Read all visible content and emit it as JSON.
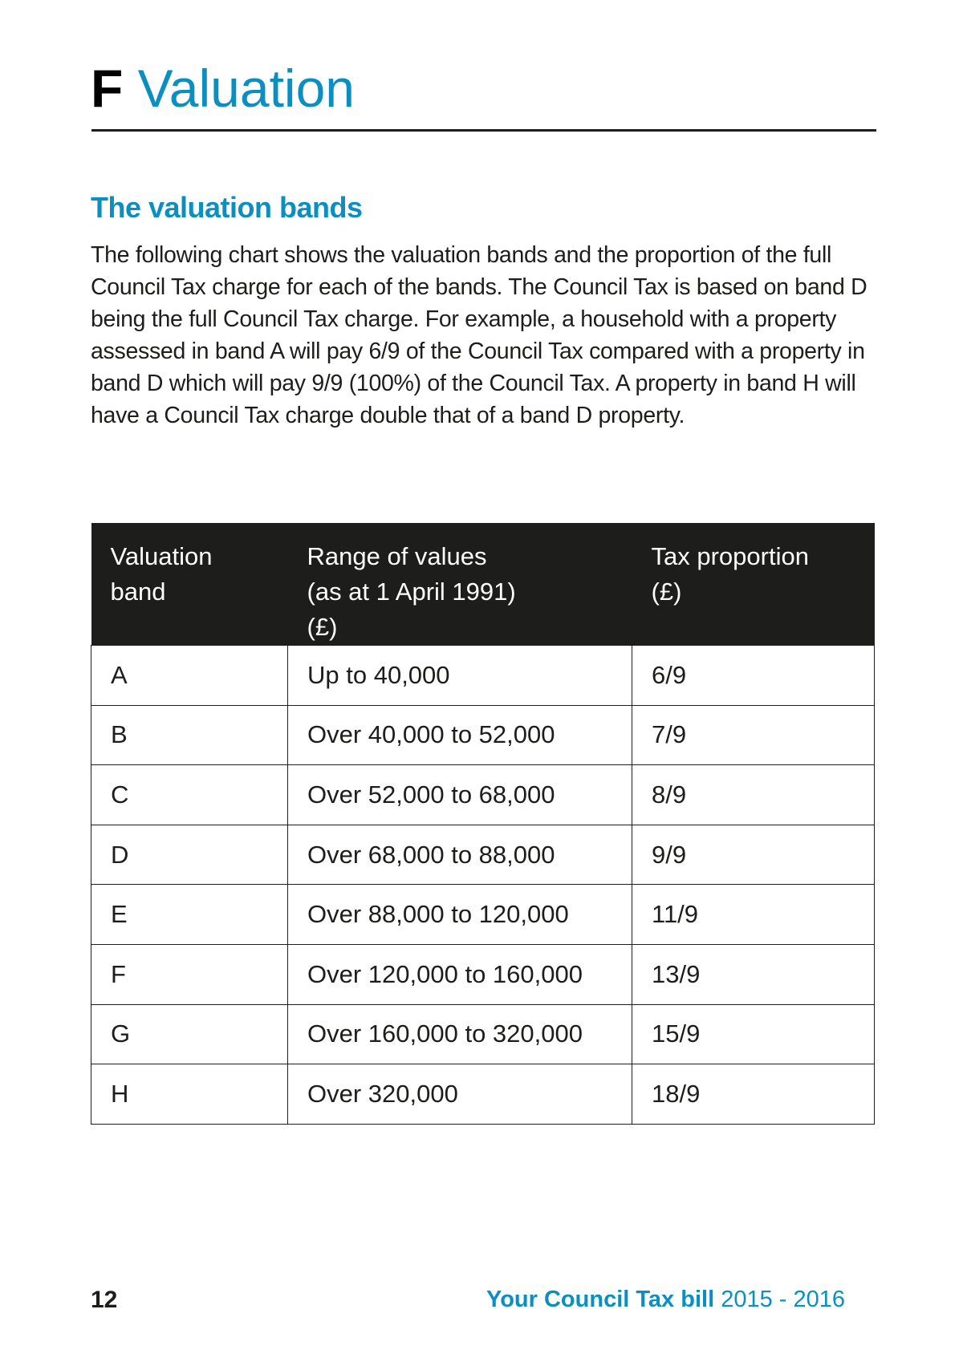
{
  "header": {
    "section_letter": "F",
    "section_title": "Valuation"
  },
  "section": {
    "heading": "The valuation bands",
    "body": "The following chart shows the valuation bands and the proportion of the full Council Tax charge for each of the bands. The Council Tax is based on band D being the full Council Tax charge. For example, a household with a property assessed in band A will pay 6/9 of the Council Tax compared with a property in band D which will pay 9/9 (100%) of the Council Tax. A property in band H will have a Council Tax charge double that of a band D property."
  },
  "table": {
    "headers": [
      [
        "Valuation",
        "band"
      ],
      [
        "Range of values",
        "(as at 1 April 1991)",
        "(£)"
      ],
      [
        "Tax proportion",
        "(£)"
      ]
    ],
    "rows": [
      [
        "A",
        "Up to 40,000",
        "6/9"
      ],
      [
        "B",
        "Over 40,000 to 52,000",
        "7/9"
      ],
      [
        "C",
        "Over 52,000 to 68,000",
        "8/9"
      ],
      [
        "D",
        "Over 68,000 to 88,000",
        "9/9"
      ],
      [
        "E",
        "Over 88,000 to 120,000",
        "11/9"
      ],
      [
        "F",
        "Over 120,000 to 160,000",
        "13/9"
      ],
      [
        "G",
        "Over 160,000 to 320,000",
        "15/9"
      ],
      [
        "H",
        "Over 320,000",
        "18/9"
      ]
    ]
  },
  "footer": {
    "page_number": "12",
    "publication_bold": "Your Council Tax bill",
    "publication_year": "2015 - 2016"
  },
  "colors": {
    "accent": "#0a8fc0",
    "header_bg": "#1d1d1b"
  }
}
